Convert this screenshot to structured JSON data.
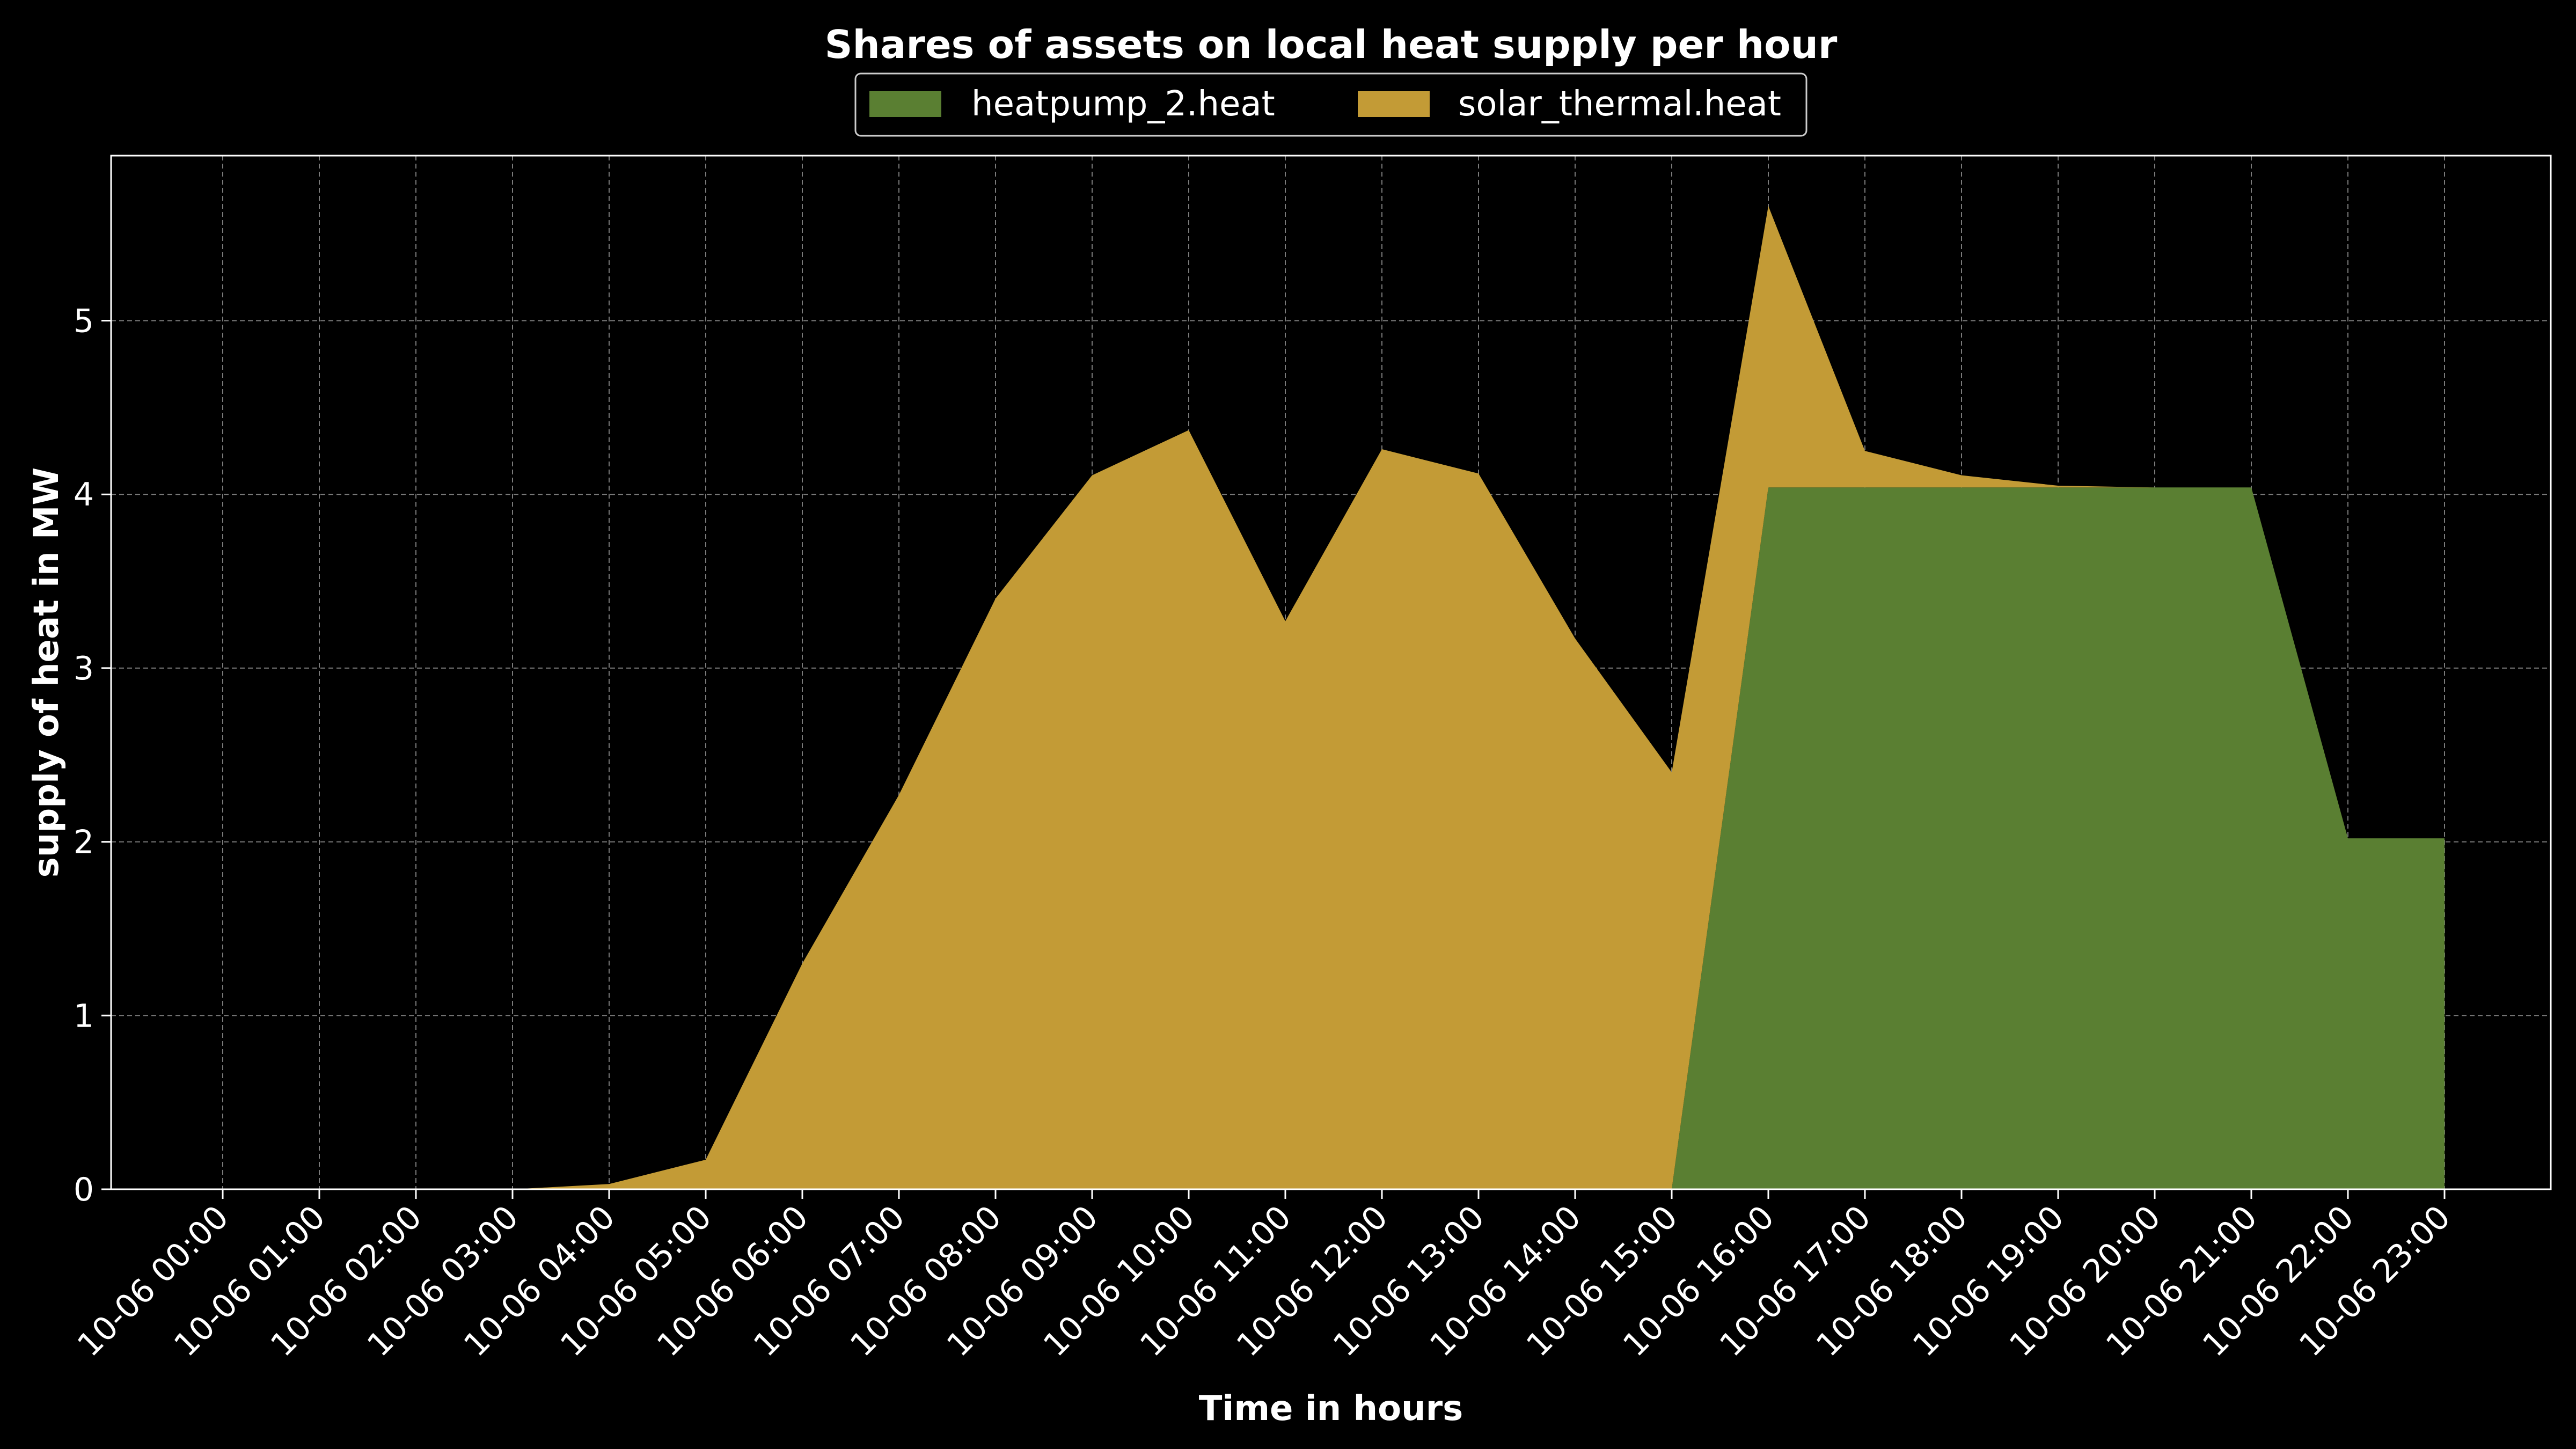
{
  "chart_data": {
    "type": "area",
    "stacked": true,
    "title": "Shares of assets on local heat supply per hour",
    "xlabel": "Time in hours",
    "ylabel": "supply of heat in MW",
    "categories": [
      "10-06 00:00",
      "10-06 01:00",
      "10-06 02:00",
      "10-06 03:00",
      "10-06 04:00",
      "10-06 05:00",
      "10-06 06:00",
      "10-06 07:00",
      "10-06 08:00",
      "10-06 09:00",
      "10-06 10:00",
      "10-06 11:00",
      "10-06 12:00",
      "10-06 13:00",
      "10-06 14:00",
      "10-06 15:00",
      "10-06 16:00",
      "10-06 17:00",
      "10-06 18:00",
      "10-06 19:00",
      "10-06 20:00",
      "10-06 21:00",
      "10-06 22:00",
      "10-06 23:00"
    ],
    "ylim": [
      0,
      5.95
    ],
    "yticks": [
      0,
      1,
      2,
      3,
      4,
      5
    ],
    "grid": true,
    "legend_position": "top-center",
    "series": [
      {
        "name": "heatpump_2.heat",
        "color": "#5a7f32",
        "values": [
          0,
          0,
          0,
          0,
          0,
          0,
          0,
          0,
          0,
          0,
          0,
          0,
          0,
          0,
          0,
          0,
          4.04,
          4.04,
          4.04,
          4.04,
          4.04,
          4.04,
          2.02,
          2.02
        ]
      },
      {
        "name": "solar_thermal.heat",
        "color": "#c39b36",
        "values": [
          0,
          0,
          0,
          0,
          0.03,
          0.17,
          1.3,
          2.27,
          3.4,
          4.11,
          4.37,
          3.27,
          4.26,
          4.12,
          3.17,
          2.4,
          1.62,
          0.21,
          0.07,
          0.01,
          0,
          0,
          0,
          0
        ]
      }
    ]
  }
}
